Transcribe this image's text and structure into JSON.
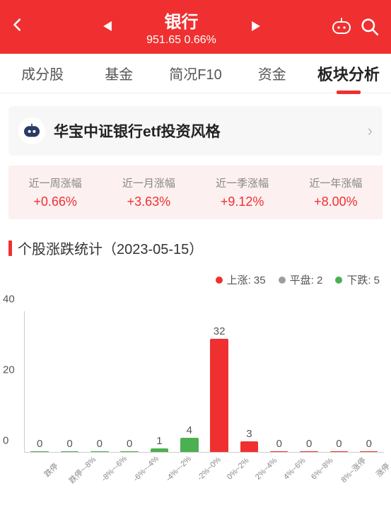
{
  "header": {
    "title": "银行",
    "price": "951.65",
    "change": "0.66%"
  },
  "tabs": {
    "items": [
      "成分股",
      "基金",
      "简况F10",
      "资金",
      "板块分析"
    ],
    "active_index": 4
  },
  "card": {
    "title": "华宝中证银行etf投资风格"
  },
  "stats": {
    "items": [
      {
        "label": "近一周涨幅",
        "value": "+0.66%"
      },
      {
        "label": "近一月涨幅",
        "value": "+3.63%"
      },
      {
        "label": "近一季涨幅",
        "value": "+9.12%"
      },
      {
        "label": "近一年涨幅",
        "value": "+8.00%"
      }
    ],
    "value_color": "#f03030"
  },
  "section": {
    "title": "个股涨跌统计（2023-05-15）"
  },
  "legend": {
    "items": [
      {
        "label": "上涨",
        "count": 35,
        "color": "#f03030"
      },
      {
        "label": "平盘",
        "count": 2,
        "color": "#9e9e9e"
      },
      {
        "label": "下跌",
        "count": 5,
        "color": "#4caf50"
      }
    ]
  },
  "chart": {
    "type": "bar",
    "ylim": [
      0,
      40
    ],
    "yticks": [
      0,
      20,
      40
    ],
    "categories": [
      "跌停",
      "跌停~-8%",
      "-8%~-6%",
      "-6%~-4%",
      "-4%~-2%",
      "-2%~0%",
      "0%~2%",
      "2%~4%",
      "4%~6%",
      "6%~8%",
      "8%~涨停",
      "涨停"
    ],
    "values": [
      0,
      0,
      0,
      0,
      1,
      4,
      32,
      3,
      0,
      0,
      0,
      0
    ],
    "bar_colors": [
      "#4caf50",
      "#4caf50",
      "#4caf50",
      "#4caf50",
      "#4caf50",
      "#4caf50",
      "#f03030",
      "#f03030",
      "#f03030",
      "#f03030",
      "#f03030",
      "#f03030"
    ],
    "background_color": "#ffffff",
    "axis_color": "#cccccc",
    "label_color": "#555555",
    "label_fontsize": 15
  },
  "colors": {
    "brand": "#f03030",
    "green": "#4caf50",
    "grey": "#9e9e9e"
  }
}
